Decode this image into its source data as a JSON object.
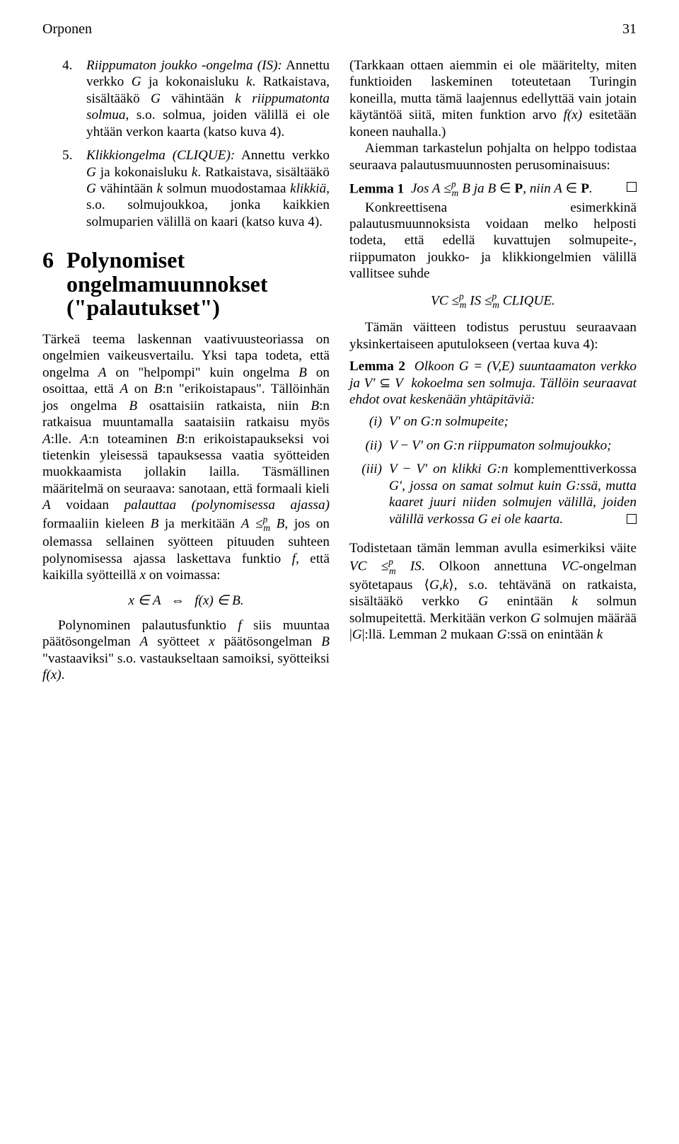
{
  "page": {
    "running_head": "Orponen",
    "page_number": "31"
  },
  "left": {
    "item4_num": "4.",
    "item4_txt_a": "Riippumaton joukko -ongelma (IS):",
    "item4_txt_b": " Annettu verkko ",
    "item4_txt_c": " ja kokonaisluku ",
    "item4_txt_d": ". Ratkaistava, sisältääkö ",
    "item4_txt_e": " vähintään ",
    "item4_txt_f": "riippumatonta solmua",
    "item4_txt_g": ", s.o. solmua, joiden välillä ei ole yhtään verkon kaarta (katso kuva 4).",
    "item5_num": "5.",
    "item5_txt_a": "Klikkiongelma (CLIQUE):",
    "item5_txt_b": " Annettu verkko ",
    "item5_txt_c": " ja kokonaisluku ",
    "item5_txt_d": ". Ratkaistava, sisältääkö ",
    "item5_txt_e": " vähintään ",
    "item5_txt_f": " solmun muodostamaa ",
    "item5_txt_g": "klikkiä",
    "item5_txt_h": ", s.o. solmujoukkoa, jonka kaikkien solmuparien välillä on kaari (katso kuva 4).",
    "sec_num": "6",
    "sec_title_l1": "Polynomiset",
    "sec_title_l2": "ongelmamuunnokset",
    "sec_title_l3": "(\"palautukset\")",
    "p1_a": "Tärkeä teema laskennan vaativuusteoriassa on ongelmien vaikeusvertailu. Yksi tapa todeta, että ongelma ",
    "p1_b": " on \"helpompi\" kuin ongelma ",
    "p1_c": " on osoittaa, että ",
    "p1_d": " on ",
    "p1_e": ":n \"erikoistapaus\". Tällöinhän jos ongelma ",
    "p1_f": " osattaisiin ratkaista, niin ",
    "p1_g": ":n ratkaisua muuntamalla saataisiin ratkaisu myös ",
    "p1_h": ":lle. ",
    "p1_i": ":n toteaminen ",
    "p1_j": ":n erikoistapaukseksi voi tietenkin yleisessä tapauksessa vaatia syötteiden muokkaamista jollakin lailla. Täsmällinen määritelmä on seuraava: sanotaan, että formaali kieli ",
    "p1_k": " voidaan ",
    "p1_l": "palauttaa (polynomisessa ajassa)",
    "p1_m": " formaaliin kieleen ",
    "p1_n": " ja merkitään ",
    "p1_o": ", jos on olemassa sellainen syötteen pituuden suhteen polynomisessa ajassa laskettava funktio ",
    "p1_p": ", että kaikilla syötteillä ",
    "p1_q": " on voimassa:",
    "eq1_lhs": "x ∈ A",
    "eq1_mid": "⇔",
    "eq1_rhs": "f(x) ∈ B.",
    "p2_a": "Polynominen palautusfunktio ",
    "p2_b": " siis muuntaa päätösongelman ",
    "p2_c": " syötteet ",
    "p2_d": " päätösongelman ",
    "p2_e": " \"vastaaviksi\" s.o. vastaukseltaan samoiksi, syötteiksi ",
    "p2_f": "."
  },
  "right": {
    "p1_a": "(Tarkkaan ottaen aiemmin ei ole määritelty, miten funktioiden laskeminen toteutetaan Turingin koneilla, mutta tämä laajennus edellyttää vain jotain käytäntöä siitä, miten funktion arvo ",
    "p1_b": " esitetään koneen nauhalla.)",
    "p2_a": "Aiemman tarkastelun pohjalta on helppo todistaa seuraava palautusmuunnosten perusominaisuus:",
    "lemma1_a": "Lemma 1",
    "lemma1_b": "Jos ",
    "lemma1_c": " ja ",
    "lemma1_d": ", niin ",
    "lemma1_e": ".",
    "p3_a": "Konkreettisena esimerkkinä palautusmuunnoksista voidaan melko helposti todeta, että edellä kuvattujen solmupeite-, riippumaton joukko- ja klikkiongelmien välillä vallitsee suhde",
    "eq2": "VC  ≤",
    "eq2b": "  IS  ≤",
    "eq2c": "  CLIQUE.",
    "p4_a": "Tämän väitteen todistus perustuu seuraavaan yksinkertaiseen aputulokseen (vertaa kuva 4):",
    "lemma2_a": "Lemma 2",
    "lemma2_b": "Olkoon ",
    "lemma2_c": " suuntaamaton verkko ja ",
    "lemma2_d": " kokoelma sen solmuja. Tällöin seuraavat ehdot ovat keskenään yhtäpitäviä:",
    "li_i_num": "(i)",
    "li_i_txt_a": " on ",
    "li_i_txt_b": ":n solmupeite;",
    "li_ii_num": "(ii)",
    "li_ii_txt_a": " on ",
    "li_ii_txt_b": ":n riippumaton solmujoukko;",
    "li_iii_num": "(iii)",
    "li_iii_txt_a": " on klikki ",
    "li_iii_txt_b": ":n ",
    "li_iii_txt_c": "komplementtiverkossa ",
    "li_iii_txt_d": ", jossa on samat solmut kuin ",
    "li_iii_txt_e": ":ssä, mutta kaaret juuri niiden solmujen välillä, joiden välillä verkossa ",
    "li_iii_txt_f": " ei ole kaarta.",
    "p5_a": "Todistetaan tämän lemman avulla esimerkiksi väite ",
    "p5_b": ". Olkoon annettuna ",
    "p5_c": "-ongelman syötetapaus ⟨",
    "p5_d": "⟩, s.o. tehtävänä on ratkaista, sisältääkö verkko ",
    "p5_e": " enintään ",
    "p5_f": " solmun solmupeitettä. Merkitään verkon ",
    "p5_g": " solmujen määrää |",
    "p5_h": "|:llä. Lemman 2 mukaan ",
    "p5_i": ":ssä on enintään "
  },
  "sym": {
    "G": "G",
    "k": "k",
    "A": "A",
    "B": "B",
    "f": "f",
    "x": "x",
    "V": "V",
    "E": "E",
    "Vp": "V′",
    "Gp": "G′",
    "fx": "f(x)",
    "VC": "VC",
    "IS": "IS",
    "P": "P",
    "leq": "≤",
    "pm": "p",
    "mm": "m",
    "in": "∈",
    "subset": "⊆",
    "minus": "−",
    "Gk": "G,k",
    "GVE": "G = (V,E)"
  }
}
